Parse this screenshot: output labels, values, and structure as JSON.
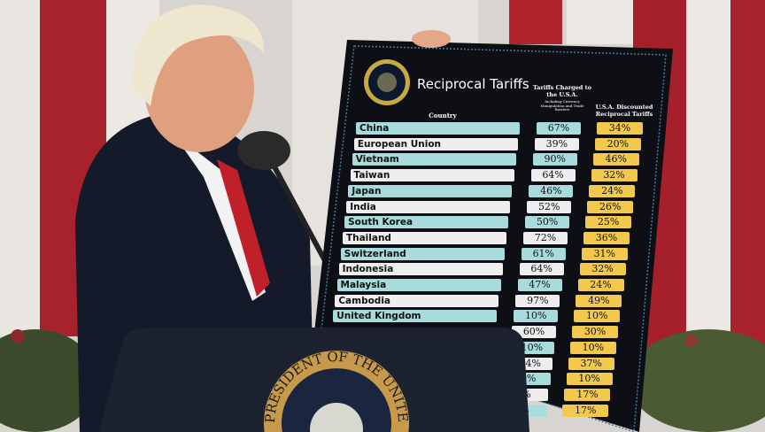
{
  "board": {
    "title": "Reciprocal Tariffs",
    "seal_lettering": "Seal of the President of the United States",
    "col_country": "Country",
    "col_charged": "Tariffs Charged to the U.S.A.",
    "col_charged_note": "Including Currency Manipulation and Trade Barriers",
    "col_discounted": "U.S.A. Discounted Reciprocal Tariffs",
    "rows": [
      {
        "country": "China",
        "charged": "67%",
        "discounted": "34%"
      },
      {
        "country": "European Union",
        "charged": "39%",
        "discounted": "20%"
      },
      {
        "country": "Vietnam",
        "charged": "90%",
        "discounted": "46%"
      },
      {
        "country": "Taiwan",
        "charged": "64%",
        "discounted": "32%"
      },
      {
        "country": "Japan",
        "charged": "46%",
        "discounted": "24%"
      },
      {
        "country": "India",
        "charged": "52%",
        "discounted": "26%"
      },
      {
        "country": "South Korea",
        "charged": "50%",
        "discounted": "25%"
      },
      {
        "country": "Thailand",
        "charged": "72%",
        "discounted": "36%"
      },
      {
        "country": "Switzerland",
        "charged": "61%",
        "discounted": "31%"
      },
      {
        "country": "Indonesia",
        "charged": "64%",
        "discounted": "32%"
      },
      {
        "country": "Malaysia",
        "charged": "47%",
        "discounted": "24%"
      },
      {
        "country": "Cambodia",
        "charged": "97%",
        "discounted": "49%"
      },
      {
        "country": "United Kingdom",
        "charged": "10%",
        "discounted": "10%"
      },
      {
        "country": "",
        "charged": "60%",
        "discounted": "30%"
      },
      {
        "country": "",
        "charged": "10%",
        "discounted": "10%"
      },
      {
        "country": "",
        "charged": "74%",
        "discounted": "37%"
      },
      {
        "country": "",
        "charged": "0%",
        "discounted": "10%"
      },
      {
        "country": "",
        "charged": "%",
        "discounted": "17%"
      },
      {
        "country": "",
        "charged": "%",
        "discounted": "17%"
      }
    ],
    "colors": {
      "teal": "#a8dcdc",
      "white": "#eeeeee",
      "yellow": "#f2c94c",
      "board": "#0d0f14"
    }
  },
  "podium": {
    "seal_lettering": "PRESIDENT OF THE UNITED"
  }
}
